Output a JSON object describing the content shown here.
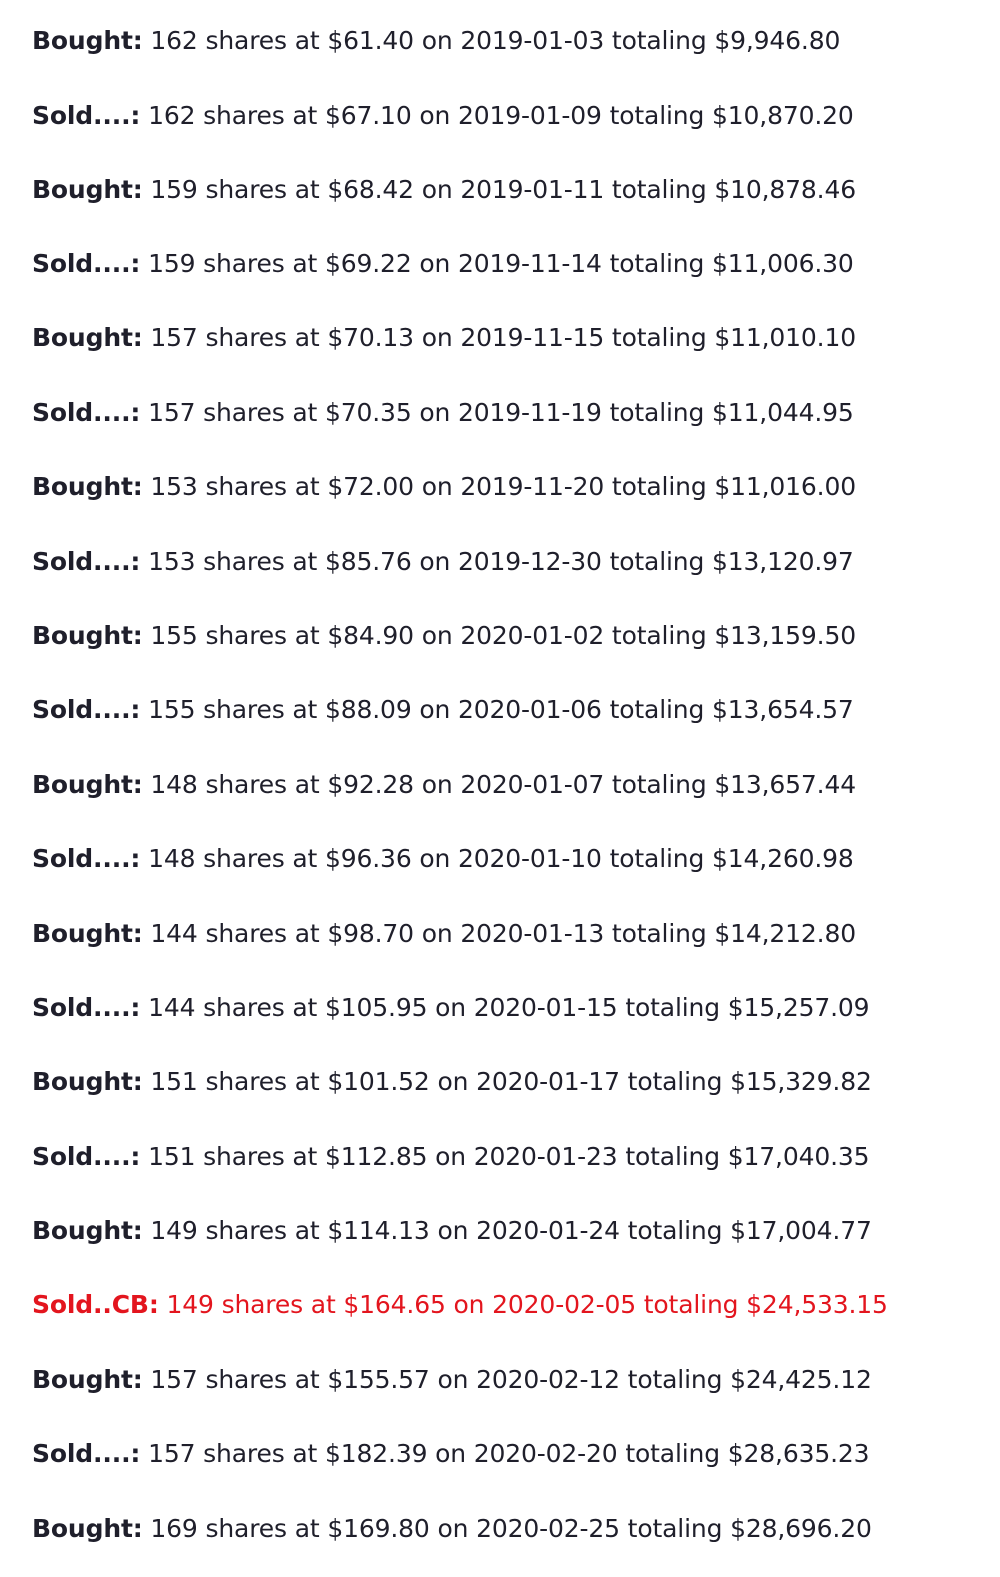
{
  "colors": {
    "text": "#1f1f2b",
    "highlight": "#e3151e"
  },
  "trades": [
    {
      "label": "Bought:",
      "text": "162 shares at $61.40 on 2019-01-03 totaling $9,946.80",
      "highlight": false
    },
    {
      "label": "Sold....:",
      "text": "162 shares at $67.10 on 2019-01-09 totaling $10,870.20",
      "highlight": false
    },
    {
      "label": "Bought:",
      "text": "159 shares at $68.42 on 2019-01-11 totaling $10,878.46",
      "highlight": false
    },
    {
      "label": "Sold....:",
      "text": "159 shares at $69.22 on 2019-11-14 totaling $11,006.30",
      "highlight": false
    },
    {
      "label": "Bought:",
      "text": "157 shares at $70.13 on 2019-11-15 totaling $11,010.10",
      "highlight": false
    },
    {
      "label": "Sold....:",
      "text": "157 shares at $70.35 on 2019-11-19 totaling $11,044.95",
      "highlight": false
    },
    {
      "label": "Bought:",
      "text": "153 shares at $72.00 on 2019-11-20 totaling $11,016.00",
      "highlight": false
    },
    {
      "label": "Sold....:",
      "text": "153 shares at $85.76 on 2019-12-30 totaling $13,120.97",
      "highlight": false
    },
    {
      "label": "Bought:",
      "text": "155 shares at $84.90 on 2020-01-02 totaling $13,159.50",
      "highlight": false
    },
    {
      "label": "Sold....:",
      "text": "155 shares at $88.09 on 2020-01-06 totaling $13,654.57",
      "highlight": false
    },
    {
      "label": "Bought:",
      "text": "148 shares at $92.28 on 2020-01-07 totaling $13,657.44",
      "highlight": false
    },
    {
      "label": "Sold....:",
      "text": "148 shares at $96.36 on 2020-01-10 totaling $14,260.98",
      "highlight": false
    },
    {
      "label": "Bought:",
      "text": "144 shares at $98.70 on 2020-01-13 totaling $14,212.80",
      "highlight": false
    },
    {
      "label": "Sold....:",
      "text": "144 shares at $105.95 on 2020-01-15 totaling $15,257.09",
      "highlight": false
    },
    {
      "label": "Bought:",
      "text": "151 shares at $101.52 on 2020-01-17 totaling $15,329.82",
      "highlight": false
    },
    {
      "label": "Sold....:",
      "text": "151 shares at $112.85 on 2020-01-23 totaling $17,040.35",
      "highlight": false
    },
    {
      "label": "Bought:",
      "text": "149 shares at $114.13 on 2020-01-24 totaling $17,004.77",
      "highlight": false
    },
    {
      "label": "Sold..CB:",
      "text": "149 shares at $164.65 on 2020-02-05 totaling $24,533.15",
      "highlight": true
    },
    {
      "label": "Bought:",
      "text": "157 shares at $155.57 on 2020-02-12 totaling $24,425.12",
      "highlight": false
    },
    {
      "label": "Sold....:",
      "text": "157 shares at $182.39 on 2020-02-20 totaling $28,635.23",
      "highlight": false
    },
    {
      "label": "Bought:",
      "text": "169 shares at $169.80 on 2020-02-25 totaling $28,696.20",
      "highlight": false
    }
  ]
}
